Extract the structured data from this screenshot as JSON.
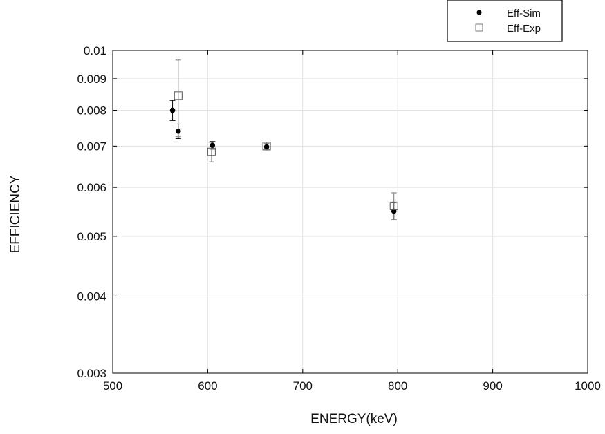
{
  "chart_data": {
    "type": "scatter",
    "title": "",
    "xlabel": "ENERGY(keV)",
    "ylabel": "EFFICIENCY",
    "xlim": [
      500,
      1000
    ],
    "ylim": [
      0.003,
      0.01
    ],
    "yscale": "log",
    "grid": true,
    "legend_position": "top-right, above plot",
    "x_ticks": [
      500,
      600,
      700,
      800,
      900,
      1000
    ],
    "x_tick_labels": [
      "500",
      "600",
      "700",
      "800",
      "900",
      "1000"
    ],
    "y_ticks": [
      0.003,
      0.004,
      0.005,
      0.006,
      0.007,
      0.008,
      0.009,
      0.01
    ],
    "y_tick_labels": [
      "0.003",
      "0.004",
      "0.005",
      "0.006",
      "0.007",
      "0.008",
      "0.009",
      "0.01"
    ],
    "series": [
      {
        "name": "Eff-Sim",
        "marker": "filled-circle",
        "color": "#000000",
        "points": [
          {
            "x": 563,
            "y": 0.008,
            "err": 0.0003
          },
          {
            "x": 569,
            "y": 0.0074,
            "err": 0.0002
          },
          {
            "x": 605,
            "y": 0.00702,
            "err": 0.0001
          },
          {
            "x": 662,
            "y": 0.00698,
            "err": 8e-05
          },
          {
            "x": 796,
            "y": 0.00549,
            "err": 0.00018
          }
        ]
      },
      {
        "name": "Eff-Exp",
        "marker": "open-square",
        "color": "#888888",
        "points": [
          {
            "x": 569,
            "y": 0.00845,
            "err": 0.0012
          },
          {
            "x": 604,
            "y": 0.00685,
            "err": 0.00025
          },
          {
            "x": 662,
            "y": 0.007,
            "err": 0.0001
          },
          {
            "x": 796,
            "y": 0.0056,
            "err": 0.00028
          }
        ]
      }
    ]
  }
}
